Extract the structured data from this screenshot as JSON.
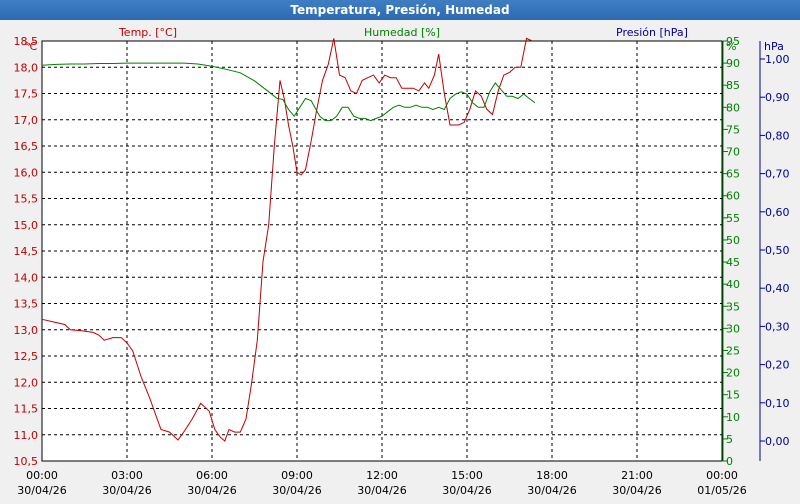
{
  "window": {
    "title": "Temperatura, Presión, Humedad"
  },
  "chart_data": {
    "type": "line",
    "title": "Temperatura, Presión, Humedad",
    "grid": true,
    "colors": {
      "temp": "#c00000",
      "hum": "#008000",
      "pres": "#000099",
      "grid": "#000000",
      "plot_bg": "#ffffff"
    },
    "x_ticks": [
      {
        "time": "00:00",
        "date": "30/04/26"
      },
      {
        "time": "03:00",
        "date": "30/04/26"
      },
      {
        "time": "06:00",
        "date": "30/04/26"
      },
      {
        "time": "09:00",
        "date": "30/04/26"
      },
      {
        "time": "12:00",
        "date": "30/04/26"
      },
      {
        "time": "15:00",
        "date": "30/04/26"
      },
      {
        "time": "18:00",
        "date": "30/04/26"
      },
      {
        "time": "21:00",
        "date": "30/04/26"
      },
      {
        "time": "00:00",
        "date": "01/05/26"
      }
    ],
    "xlim": [
      0,
      24
    ],
    "axes": {
      "temp": {
        "label": "Temp. [°C]",
        "unit": "°C",
        "ylim": [
          10.5,
          18.5
        ],
        "ticks": [
          "10,5",
          "11,0",
          "11,5",
          "12,0",
          "12,5",
          "13,0",
          "13,5",
          "14,0",
          "14,5",
          "15,0",
          "15,5",
          "16,0",
          "16,5",
          "17,0",
          "17,5",
          "18,0",
          "18,5"
        ]
      },
      "hum": {
        "label": "Humedad [%]",
        "unit": "%",
        "ylim": [
          0,
          95
        ],
        "ticks": [
          "0",
          "5",
          "10",
          "15",
          "20",
          "25",
          "30",
          "35",
          "40",
          "45",
          "50",
          "55",
          "60",
          "65",
          "70",
          "75",
          "80",
          "85",
          "90",
          "95"
        ]
      },
      "pres": {
        "label": "Presión [hPa]",
        "unit": "hPa",
        "ticks": [
          "0,00",
          "0,10",
          "0,20",
          "0,30",
          "0,40",
          "0,50",
          "0,60",
          "0,70",
          "0,80",
          "0,90",
          "1,00"
        ]
      }
    },
    "series": [
      {
        "name": "Temp. [°C]",
        "axis": "temp",
        "points": [
          [
            0.0,
            13.2
          ],
          [
            0.4,
            13.15
          ],
          [
            0.8,
            13.1
          ],
          [
            1.0,
            13.0
          ],
          [
            1.4,
            12.98
          ],
          [
            1.8,
            12.95
          ],
          [
            2.0,
            12.9
          ],
          [
            2.2,
            12.8
          ],
          [
            2.5,
            12.85
          ],
          [
            2.8,
            12.85
          ],
          [
            3.0,
            12.75
          ],
          [
            3.2,
            12.6
          ],
          [
            3.5,
            12.1
          ],
          [
            3.8,
            11.7
          ],
          [
            4.0,
            11.4
          ],
          [
            4.2,
            11.1
          ],
          [
            4.5,
            11.05
          ],
          [
            4.8,
            10.9
          ],
          [
            5.0,
            11.05
          ],
          [
            5.3,
            11.3
          ],
          [
            5.6,
            11.6
          ],
          [
            5.9,
            11.45
          ],
          [
            6.1,
            11.1
          ],
          [
            6.3,
            10.95
          ],
          [
            6.45,
            10.88
          ],
          [
            6.6,
            11.1
          ],
          [
            6.8,
            11.05
          ],
          [
            7.0,
            11.05
          ],
          [
            7.2,
            11.3
          ],
          [
            7.4,
            12.0
          ],
          [
            7.6,
            12.8
          ],
          [
            7.8,
            14.3
          ],
          [
            8.0,
            15.0
          ],
          [
            8.2,
            16.5
          ],
          [
            8.4,
            17.75
          ],
          [
            8.55,
            17.4
          ],
          [
            8.7,
            16.9
          ],
          [
            8.85,
            16.5
          ],
          [
            9.0,
            16.0
          ],
          [
            9.15,
            15.95
          ],
          [
            9.3,
            16.05
          ],
          [
            9.5,
            16.6
          ],
          [
            9.7,
            17.2
          ],
          [
            9.9,
            17.75
          ],
          [
            10.1,
            18.05
          ],
          [
            10.3,
            18.55
          ],
          [
            10.5,
            17.85
          ],
          [
            10.7,
            17.8
          ],
          [
            10.9,
            17.55
          ],
          [
            11.1,
            17.5
          ],
          [
            11.3,
            17.75
          ],
          [
            11.5,
            17.8
          ],
          [
            11.7,
            17.85
          ],
          [
            11.9,
            17.7
          ],
          [
            12.1,
            17.85
          ],
          [
            12.3,
            17.8
          ],
          [
            12.5,
            17.8
          ],
          [
            12.7,
            17.6
          ],
          [
            12.9,
            17.6
          ],
          [
            13.1,
            17.6
          ],
          [
            13.3,
            17.55
          ],
          [
            13.5,
            17.7
          ],
          [
            13.65,
            17.6
          ],
          [
            13.85,
            17.85
          ],
          [
            14.0,
            18.25
          ],
          [
            14.2,
            17.5
          ],
          [
            14.4,
            16.9
          ],
          [
            14.7,
            16.9
          ],
          [
            14.9,
            16.95
          ],
          [
            15.1,
            17.2
          ],
          [
            15.3,
            17.55
          ],
          [
            15.5,
            17.45
          ],
          [
            15.7,
            17.2
          ],
          [
            15.9,
            17.1
          ],
          [
            16.1,
            17.55
          ],
          [
            16.3,
            17.85
          ],
          [
            16.5,
            17.9
          ],
          [
            16.7,
            18.0
          ],
          [
            16.9,
            18.0
          ],
          [
            17.1,
            18.55
          ],
          [
            17.3,
            18.5
          ]
        ]
      },
      {
        "name": "Humedad [%]",
        "axis": "hum",
        "points": [
          [
            0.0,
            89.5
          ],
          [
            0.5,
            89.7
          ],
          [
            1.0,
            89.8
          ],
          [
            1.5,
            89.8
          ],
          [
            2.0,
            89.9
          ],
          [
            2.5,
            89.9
          ],
          [
            3.0,
            90.0
          ],
          [
            3.5,
            90.0
          ],
          [
            4.0,
            90.0
          ],
          [
            4.5,
            90.0
          ],
          [
            5.0,
            90.0
          ],
          [
            5.5,
            89.8
          ],
          [
            6.0,
            89.3
          ],
          [
            6.5,
            88.6
          ],
          [
            7.0,
            87.8
          ],
          [
            7.5,
            86.0
          ],
          [
            8.0,
            83.5
          ],
          [
            8.3,
            82.0
          ],
          [
            8.5,
            81.8
          ],
          [
            8.7,
            79.5
          ],
          [
            8.9,
            78.0
          ],
          [
            9.1,
            80.0
          ],
          [
            9.3,
            82.0
          ],
          [
            9.5,
            81.5
          ],
          [
            9.8,
            78.0
          ],
          [
            10.0,
            77.0
          ],
          [
            10.2,
            77.0
          ],
          [
            10.4,
            78.0
          ],
          [
            10.6,
            80.0
          ],
          [
            10.8,
            80.0
          ],
          [
            11.0,
            78.0
          ],
          [
            11.2,
            77.5
          ],
          [
            11.4,
            77.5
          ],
          [
            11.6,
            77.0
          ],
          [
            11.8,
            77.5
          ],
          [
            12.0,
            78.0
          ],
          [
            12.2,
            79.0
          ],
          [
            12.4,
            80.0
          ],
          [
            12.6,
            80.5
          ],
          [
            12.8,
            80.0
          ],
          [
            13.0,
            80.0
          ],
          [
            13.2,
            80.5
          ],
          [
            13.4,
            80.0
          ],
          [
            13.6,
            80.0
          ],
          [
            13.8,
            79.5
          ],
          [
            14.0,
            80.0
          ],
          [
            14.2,
            79.5
          ],
          [
            14.4,
            82.0
          ],
          [
            14.6,
            83.0
          ],
          [
            14.8,
            83.5
          ],
          [
            15.0,
            83.0
          ],
          [
            15.2,
            81.0
          ],
          [
            15.4,
            80.0
          ],
          [
            15.6,
            80.0
          ],
          [
            15.8,
            83.5
          ],
          [
            16.0,
            85.5
          ],
          [
            16.2,
            84.0
          ],
          [
            16.4,
            82.5
          ],
          [
            16.6,
            82.5
          ],
          [
            16.8,
            82.0
          ],
          [
            17.0,
            83.0
          ],
          [
            17.2,
            82.0
          ],
          [
            17.4,
            81.0
          ]
        ]
      }
    ]
  }
}
